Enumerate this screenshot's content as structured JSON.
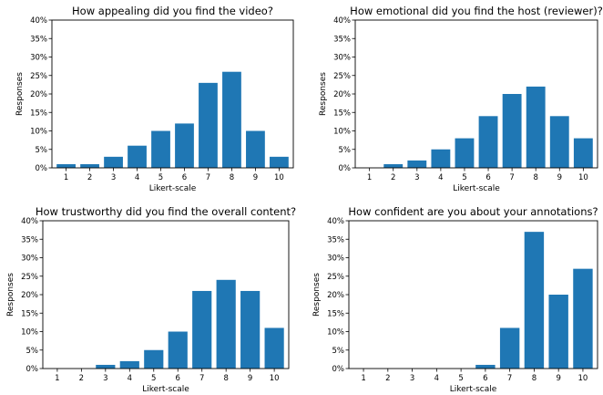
{
  "chart_data": [
    {
      "type": "bar",
      "title": "How appealing did you find the video?",
      "xlabel": "Likert-scale",
      "ylabel": "Responses",
      "categories": [
        "1",
        "2",
        "3",
        "4",
        "5",
        "6",
        "7",
        "8",
        "9",
        "10"
      ],
      "values": [
        1,
        1,
        3,
        6,
        10,
        12,
        23,
        26,
        10,
        3
      ],
      "ylim": [
        0,
        40
      ],
      "yticks": [
        "0%",
        "5%",
        "10%",
        "15%",
        "20%",
        "25%",
        "30%",
        "35%",
        "40%"
      ],
      "color": "#1f77b4",
      "grid": false
    },
    {
      "type": "bar",
      "title": "How emotional did you find the host (reviewer)?",
      "xlabel": "Likert-scale",
      "ylabel": "Responses",
      "categories": [
        "1",
        "2",
        "3",
        "4",
        "5",
        "6",
        "7",
        "8",
        "9",
        "10"
      ],
      "values": [
        0,
        1,
        2,
        5,
        8,
        14,
        20,
        22,
        14,
        8
      ],
      "ylim": [
        0,
        40
      ],
      "yticks": [
        "0%",
        "5%",
        "10%",
        "15%",
        "20%",
        "25%",
        "30%",
        "35%",
        "40%"
      ],
      "color": "#1f77b4",
      "grid": false
    },
    {
      "type": "bar",
      "title": "How trustworthy did you find the overall content?",
      "xlabel": "Likert-scale",
      "ylabel": "Responses",
      "categories": [
        "1",
        "2",
        "3",
        "4",
        "5",
        "6",
        "7",
        "8",
        "9",
        "10"
      ],
      "values": [
        0,
        0,
        1,
        2,
        5,
        10,
        21,
        24,
        21,
        11
      ],
      "ylim": [
        0,
        40
      ],
      "yticks": [
        "0%",
        "5%",
        "10%",
        "15%",
        "20%",
        "25%",
        "30%",
        "35%",
        "40%"
      ],
      "color": "#1f77b4",
      "grid": false
    },
    {
      "type": "bar",
      "title": "How confident are you about your annotations?",
      "xlabel": "Likert-scale",
      "ylabel": "Responses",
      "categories": [
        "1",
        "2",
        "3",
        "4",
        "5",
        "6",
        "7",
        "8",
        "9",
        "10"
      ],
      "values": [
        0,
        0,
        0,
        0,
        0,
        1,
        11,
        37,
        20,
        27
      ],
      "ylim": [
        0,
        40
      ],
      "yticks": [
        "0%",
        "5%",
        "10%",
        "15%",
        "20%",
        "25%",
        "30%",
        "35%",
        "40%"
      ],
      "color": "#1f77b4",
      "grid": false
    }
  ]
}
